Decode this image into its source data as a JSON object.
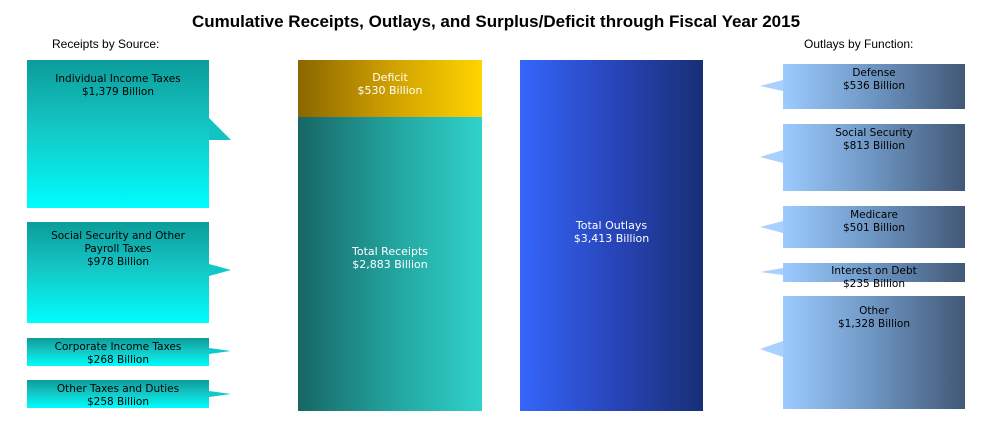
{
  "title": "Cumulative Receipts, Outlays, and Surplus/Deficit through Fiscal Year 2015",
  "receipts_heading": "Receipts by Source:",
  "outlays_heading": "Outlays by Function:",
  "colors": {
    "receipts_boxes": "#14c6c4",
    "outlays_boxes": "#6d95c2",
    "deficit": "#f2c200",
    "total_receipts": "#1e9b96",
    "total_outlays": "#2f5de8"
  },
  "chart_data": {
    "type": "bar",
    "title": "Cumulative Receipts, Outlays, and Surplus/Deficit through Fiscal Year 2015",
    "unit": "Billion",
    "receipts": [
      {
        "label": "Individual Income Taxes",
        "value_text": "$1,379 Billion",
        "value": 1379
      },
      {
        "label": "Social Security and Other Payroll Taxes",
        "value_text": "$978 Billion",
        "value": 978
      },
      {
        "label": "Corporate Income Taxes",
        "value_text": "$268 Billion",
        "value": 268
      },
      {
        "label": "Other Taxes and Duties",
        "value_text": "$258 Billion",
        "value": 258
      }
    ],
    "outlays": [
      {
        "label": "Defense",
        "value_text": "$536 Billion",
        "value": 536
      },
      {
        "label": "Social Security",
        "value_text": "$813 Billion",
        "value": 813
      },
      {
        "label": "Medicare",
        "value_text": "$501 Billion",
        "value": 501
      },
      {
        "label": "Interest on Debt",
        "value_text": "$235 Billion",
        "value": 235
      },
      {
        "label": "Other",
        "value_text": "$1,328 Billion",
        "value": 1328
      }
    ],
    "receipts_bar": [
      {
        "label": "Deficit",
        "value_text": "$530 Billion",
        "value": 530
      },
      {
        "label": "Total Receipts",
        "value_text": "$2,883 Billion",
        "value": 2883
      }
    ],
    "outlays_bar": [
      {
        "label": "Total Outlays",
        "value_text": "$3,413 Billion",
        "value": 3413
      }
    ]
  }
}
